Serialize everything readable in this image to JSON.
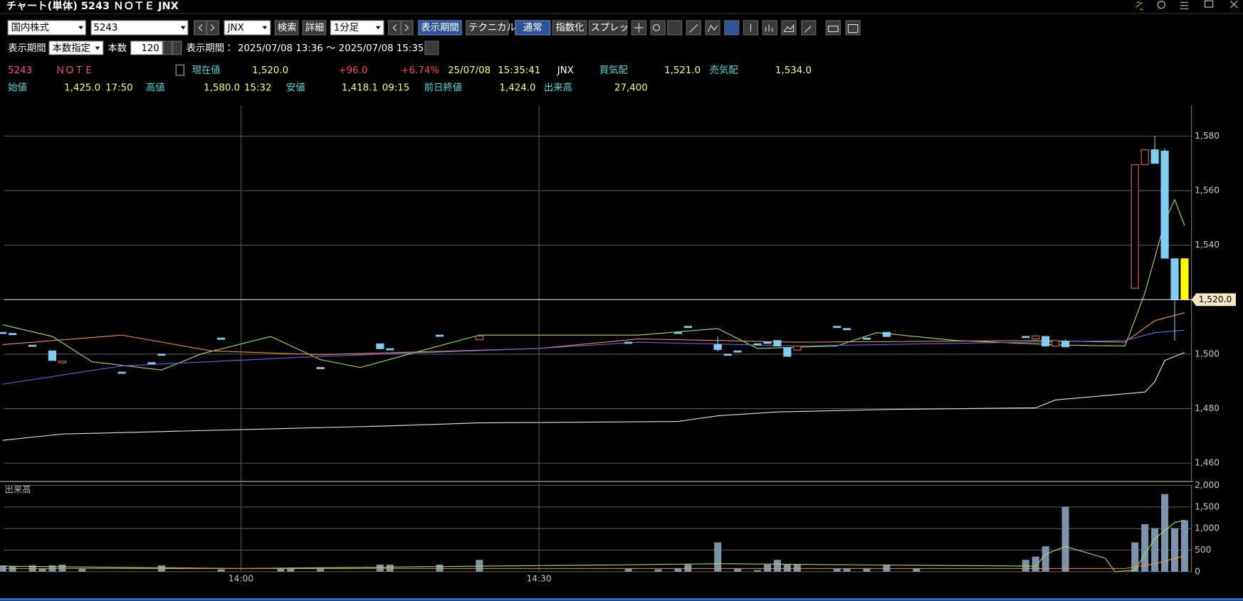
{
  "window": {
    "title": "チャート(単体) 5243 ＮＯＴＥ JNX"
  },
  "toolbar": {
    "market": "国内株式",
    "code": "5243",
    "exchange": "JNX",
    "search": "検索",
    "detail": "詳細",
    "interval": "1分足",
    "period_button": "表示期間",
    "technical": "テクニカル",
    "normal": "通常",
    "indexed": "指数化",
    "spread": "スプレッド"
  },
  "period": {
    "label": "表示期間",
    "mode": "本数指定",
    "count_label": "本数",
    "count": "120",
    "range_label": "表示期間：",
    "range": "2025/07/08 13:36 ～ 2025/07/08 15:35"
  },
  "quote": {
    "code": "5243",
    "name": "ＮＯＴＥ",
    "current_label": "現在値",
    "current": "1,520.0",
    "change": "+96.0",
    "change_pct": "+6.74%",
    "date": "25/07/08",
    "time": "15:35:41",
    "exchange": "JNX",
    "bid_label": "買気配",
    "bid": "1,521.0",
    "ask_label": "売気配",
    "ask": "1,534.0",
    "open_label": "始値",
    "open": "1,425.0",
    "open_time": "17:50",
    "high_label": "高値",
    "high": "1,580.0",
    "high_time": "15:32",
    "low_label": "安値",
    "low": "1,418.1",
    "low_time": "09:15",
    "prev_label": "前日終値",
    "prev": "1,424.0",
    "volume_label": "出来高",
    "volume": "27,400"
  },
  "chart_data": [
    {
      "type": "candlestick",
      "x": [
        0,
        1,
        3,
        5,
        6,
        12,
        15,
        16,
        22,
        32,
        38,
        39,
        44,
        48,
        63,
        68,
        69,
        72,
        73,
        74,
        76,
        77,
        78,
        79,
        80,
        84,
        85,
        87,
        89,
        103,
        104,
        105,
        106,
        107,
        114,
        115,
        116,
        117,
        118,
        119
      ],
      "open": [
        1508,
        1507.6,
        1503.3,
        1501.2,
        1496.8,
        1493.4,
        1496.9,
        1500,
        1505.9,
        1495.1,
        1503.8,
        1502,
        1507,
        1505.3,
        1504.4,
        1508,
        1510.2,
        1503.5,
        1500,
        1501.2,
        1503.8,
        1504.4,
        1505,
        1502.4,
        1501.5,
        1510.2,
        1509.4,
        1505.9,
        1508,
        1506.5,
        1505.6,
        1506.5,
        1503,
        1504.7,
        1524.2,
        1569.5,
        1575,
        1574.5,
        1535,
        1535
      ],
      "high": [
        1508,
        1507.6,
        1503.3,
        1501.2,
        1497.4,
        1493.4,
        1496.9,
        1500,
        1505.9,
        1495.1,
        1503.8,
        1502,
        1507,
        1506.7,
        1504.4,
        1508,
        1510.2,
        1506.4,
        1500,
        1501.2,
        1503.8,
        1504.4,
        1505,
        1502.4,
        1503,
        1510.2,
        1509.4,
        1505.9,
        1508,
        1506.5,
        1506.7,
        1506.5,
        1505,
        1505.5,
        1569.5,
        1575,
        1580,
        1575.5,
        1535,
        1535
      ],
      "low": [
        1508,
        1507.6,
        1503.3,
        1497.7,
        1496.8,
        1493.4,
        1496.9,
        1500,
        1505.9,
        1495.1,
        1502,
        1502,
        1507,
        1505.3,
        1504.4,
        1508,
        1510.2,
        1501,
        1500,
        1501.2,
        1503.8,
        1504.4,
        1503,
        1499.2,
        1501.5,
        1510.2,
        1509.4,
        1505.9,
        1506.5,
        1506.5,
        1505.6,
        1503,
        1503,
        1502.7,
        1524.2,
        1569.5,
        1570,
        1535.2,
        1505,
        1520
      ],
      "close": [
        1508,
        1507.6,
        1503.3,
        1497.7,
        1497.4,
        1493.4,
        1496.9,
        1500,
        1505.9,
        1495.1,
        1502,
        1502,
        1507,
        1506.7,
        1504.4,
        1508,
        1510.2,
        1501.7,
        1500,
        1501.2,
        1503.8,
        1504.4,
        1503,
        1499.2,
        1503,
        1510.2,
        1509.4,
        1505.9,
        1506.5,
        1506.5,
        1506.7,
        1503,
        1505,
        1502.7,
        1569.5,
        1575,
        1570,
        1535.2,
        1520,
        1520
      ],
      "up_color": "#e0605a",
      "down_color": "#7fcdf0",
      "last_color": "#ffff00",
      "series": [
        {
          "color": "#9be25a",
          "x": [
            0,
            5,
            9,
            16,
            20,
            27,
            32,
            36,
            43,
            48,
            64,
            72,
            76,
            84,
            88,
            96,
            107,
            113,
            115,
            117,
            118,
            119
          ],
          "values": [
            1510.8,
            1506.5,
            1497.2,
            1494.2,
            1500.1,
            1506.5,
            1498,
            1495.1,
            1502.1,
            1507,
            1507,
            1509.4,
            1502.1,
            1503,
            1507.9,
            1505,
            1503.3,
            1503,
            1522.4,
            1548.6,
            1556.7,
            1547.2
          ]
        },
        {
          "color": "#f0913a",
          "x": [
            0,
            12,
            21,
            32,
            54,
            64,
            80,
            104,
            113,
            116,
            119
          ],
          "values": [
            1503.5,
            1507,
            1501.2,
            1499.8,
            1502.1,
            1505.6,
            1504.4,
            1505,
            1504.4,
            1512.3,
            1515.2
          ]
        },
        {
          "color": "#6a5ff0",
          "x": [
            0,
            12,
            32,
            54,
            64,
            80,
            113,
            116,
            119
          ],
          "values": [
            1489,
            1495.7,
            1499.2,
            1502.1,
            1504.4,
            1503,
            1505,
            1507.9,
            1508.8
          ]
        },
        {
          "color": "#e8e8e8",
          "x": [
            0,
            6,
            16,
            38,
            48,
            68,
            72,
            78,
            89,
            104,
            106,
            115,
            116,
            117,
            119
          ],
          "values": [
            1468.4,
            1470.7,
            1471.6,
            1473.6,
            1474.8,
            1475.3,
            1477.4,
            1478.8,
            1479.7,
            1480.3,
            1483.2,
            1486.1,
            1489.9,
            1497.7,
            1500.6
          ]
        }
      ],
      "xlim": [
        0,
        119.5
      ],
      "ylim": [
        1453.6,
        1591.3
      ],
      "yticks": [
        {
          "value": 1460,
          "label": "1,460"
        },
        {
          "value": 1480,
          "label": "1,480"
        },
        {
          "value": 1500,
          "label": "1,500"
        },
        {
          "value": 1540,
          "label": "1,540"
        },
        {
          "value": 1560,
          "label": "1,560"
        },
        {
          "value": 1580,
          "label": "1,580"
        }
      ],
      "current": {
        "value": 1520,
        "label": "1,520.0"
      },
      "grid": true
    },
    {
      "type": "bar",
      "title": "出来高",
      "color": "#7d93ad",
      "x": [
        0,
        1,
        3,
        4,
        5,
        6,
        8,
        16,
        22,
        28,
        29,
        32,
        38,
        39,
        44,
        48,
        63,
        66,
        68,
        69,
        72,
        74,
        76,
        77,
        78,
        79,
        80,
        84,
        85,
        87,
        89,
        92,
        103,
        104,
        105,
        107,
        114,
        115,
        116,
        117,
        118,
        119
      ],
      "values": [
        147,
        128,
        147,
        73,
        147,
        165,
        73,
        147,
        55,
        73,
        73,
        73,
        165,
        165,
        165,
        275,
        73,
        55,
        73,
        165,
        679,
        73,
        37,
        165,
        275,
        165,
        165,
        73,
        73,
        73,
        165,
        73,
        275,
        349,
        587,
        1505,
        679,
        1101,
        1009,
        1798,
        1009,
        1193
      ],
      "series": [
        {
          "color": "#9be25a",
          "x": [
            0,
            24,
            72,
            73,
            104,
            105,
            107,
            111,
            112,
            114,
            116,
            118,
            119
          ],
          "values": [
            128,
            73,
            183,
            183,
            128,
            404,
            587,
            312,
            0,
            37,
            771,
            1138,
            1193
          ]
        },
        {
          "color": "#f0913a",
          "x": [
            0,
            104,
            113,
            116,
            119
          ],
          "values": [
            73,
            73,
            73,
            183,
            367
          ]
        }
      ],
      "xlim": [
        0,
        119.5
      ],
      "ylim": [
        0,
        2000
      ],
      "xticks": [
        {
          "value": 24,
          "label": "14:00"
        },
        {
          "value": 54,
          "label": "14:30"
        }
      ],
      "yticks": [
        0,
        500,
        {
          "value": 1000,
          "label": "1,000"
        },
        {
          "value": 1500,
          "label": "1,500"
        },
        {
          "value": 2000,
          "label": "2,000"
        }
      ],
      "grid": true
    }
  ]
}
